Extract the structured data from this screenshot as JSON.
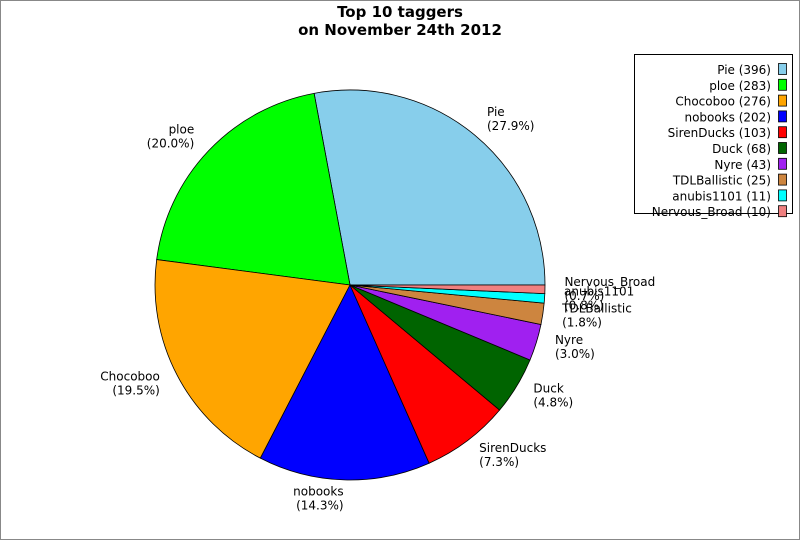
{
  "chart_data": {
    "type": "pie",
    "title": "Top 10 taggers",
    "subtitle": "on November 24th 2012",
    "categories": [
      "Pie",
      "ploe",
      "Chocoboo",
      "nobooks",
      "SirenDucks",
      "Duck",
      "Nyre",
      "TDLBallistic",
      "anubis1101",
      "Nervous_Broad"
    ],
    "values": [
      396,
      283,
      276,
      202,
      103,
      68,
      43,
      25,
      11,
      10
    ],
    "percent_labels": [
      "(27.9%)",
      "(20.0%)",
      "(19.5%)",
      "(14.3%)",
      "(7.3%)",
      "(4.8%)",
      "(3.0%)",
      "(1.8%)",
      "(0.8%)",
      "(0.7%)"
    ],
    "legend_labels": [
      "Pie (396)",
      "ploe (283)",
      "Chocoboo (276)",
      "nobooks (202)",
      "SirenDucks (103)",
      "Duck (68)",
      "Nyre (43)",
      "TDLBallistic (25)",
      "anubis1101 (11)",
      "Nervous_Broad (10)"
    ],
    "colors": [
      "#87ceeb",
      "#00ff00",
      "#ffa500",
      "#0000ff",
      "#ff0000",
      "#006400",
      "#a020f0",
      "#cd853f",
      "#00ffff",
      "#f08080"
    ],
    "legend": "upper right"
  }
}
